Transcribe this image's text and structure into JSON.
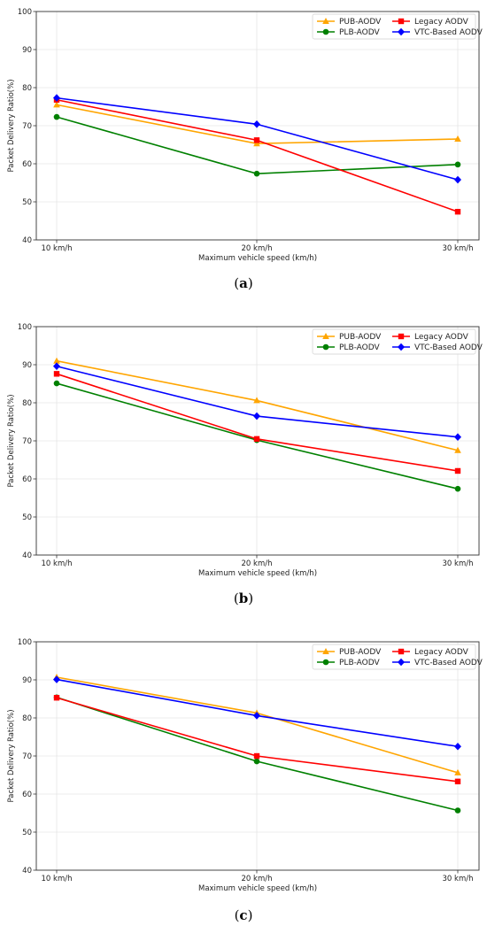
{
  "chart_data": [
    {
      "type": "line",
      "caption_label": "a",
      "xlabel": "Maximum vehicle speed (km/h)",
      "ylabel": "Packet Delivery Ratio(%)",
      "categories": [
        "10 km/h",
        "20 km/h",
        "30 km/h"
      ],
      "ylim": [
        40,
        100
      ],
      "yticks": [
        40,
        50,
        60,
        70,
        80,
        90,
        100
      ],
      "grid": true,
      "legend_position": "top-right",
      "series": [
        {
          "name": "PUB-AODV",
          "color": "#ffa500",
          "marker": "triangle",
          "values": [
            75.5,
            65.3,
            66.5
          ]
        },
        {
          "name": "PLB-AODV",
          "color": "#008000",
          "marker": "circle",
          "values": [
            72.3,
            57.4,
            59.8
          ]
        },
        {
          "name": "Legacy AODV",
          "color": "#ff0000",
          "marker": "square",
          "values": [
            76.8,
            66.2,
            47.4
          ]
        },
        {
          "name": "VTC-Based AODV",
          "color": "#0000ff",
          "marker": "diamond",
          "values": [
            77.3,
            70.4,
            55.8
          ]
        }
      ]
    },
    {
      "type": "line",
      "caption_label": "b",
      "xlabel": "Maximum vehicle speed (km/h)",
      "ylabel": "Packet Delivery Ratio(%)",
      "categories": [
        "10 km/h",
        "20 km/h",
        "30 km/h"
      ],
      "ylim": [
        40,
        100
      ],
      "yticks": [
        40,
        50,
        60,
        70,
        80,
        90,
        100
      ],
      "grid": true,
      "legend_position": "top-right",
      "series": [
        {
          "name": "PUB-AODV",
          "color": "#ffa500",
          "marker": "triangle",
          "values": [
            91.0,
            80.6,
            67.5
          ]
        },
        {
          "name": "PLB-AODV",
          "color": "#008000",
          "marker": "circle",
          "values": [
            85.1,
            70.2,
            57.4
          ]
        },
        {
          "name": "Legacy AODV",
          "color": "#ff0000",
          "marker": "square",
          "values": [
            87.6,
            70.5,
            62.1
          ]
        },
        {
          "name": "VTC-Based AODV",
          "color": "#0000ff",
          "marker": "diamond",
          "values": [
            89.6,
            76.5,
            71.0
          ]
        }
      ]
    },
    {
      "type": "line",
      "caption_label": "c",
      "xlabel": "Maximum vehicle speed (km/h)",
      "ylabel": "Packet Delivery Ratio(%)",
      "categories": [
        "10 km/h",
        "20 km/h",
        "30 km/h"
      ],
      "ylim": [
        40,
        100
      ],
      "yticks": [
        40,
        50,
        60,
        70,
        80,
        90,
        100
      ],
      "grid": true,
      "legend_position": "top-right",
      "series": [
        {
          "name": "PUB-AODV",
          "color": "#ffa500",
          "marker": "triangle",
          "values": [
            90.7,
            81.3,
            65.6
          ]
        },
        {
          "name": "PLB-AODV",
          "color": "#008000",
          "marker": "circle",
          "values": [
            85.4,
            68.6,
            55.7
          ]
        },
        {
          "name": "Legacy AODV",
          "color": "#ff0000",
          "marker": "square",
          "values": [
            85.3,
            70.0,
            63.3
          ]
        },
        {
          "name": "VTC-Based AODV",
          "color": "#0000ff",
          "marker": "diamond",
          "values": [
            90.1,
            80.6,
            72.5
          ]
        }
      ]
    }
  ]
}
